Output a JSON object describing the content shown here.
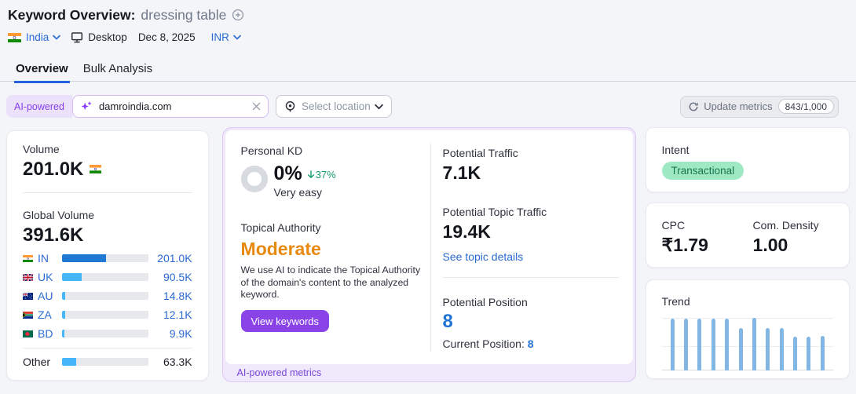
{
  "header": {
    "title": "Keyword Overview:",
    "keyword": "dressing table",
    "country": "India",
    "device": "Desktop",
    "date": "Dec 8, 2025",
    "currency": "INR"
  },
  "tabs": {
    "overview": "Overview",
    "bulk": "Bulk Analysis"
  },
  "toolbar": {
    "ai_badge": "AI-powered",
    "domain_value": "damroindia.com",
    "location_placeholder": "Select location",
    "update_button": "Update metrics",
    "quota": "843/1,000"
  },
  "volume_card": {
    "volume_label": "Volume",
    "volume_value": "201.0K",
    "global_label": "Global Volume",
    "global_value": "391.6K",
    "rows": [
      {
        "code": "IN",
        "value": "201.0K",
        "share_pct": 51.3,
        "bar_color": "#1f78d4"
      },
      {
        "code": "UK",
        "value": "90.5K",
        "share_pct": 23.1,
        "bar_color": "#45b6f7"
      },
      {
        "code": "AU",
        "value": "14.8K",
        "share_pct": 4.0,
        "bar_color": "#45b6f7"
      },
      {
        "code": "ZA",
        "value": "12.1K",
        "share_pct": 3.3,
        "bar_color": "#45b6f7"
      },
      {
        "code": "BD",
        "value": "9.9K",
        "share_pct": 2.8,
        "bar_color": "#45b6f7"
      }
    ],
    "other": {
      "label": "Other",
      "value": "63.3K",
      "share_pct": 16.2,
      "bar_color": "#45b6f7"
    }
  },
  "kd_card": {
    "personal_kd_label": "Personal KD",
    "kd_value": "0%",
    "kd_change": "37%",
    "kd_difficulty": "Very easy",
    "topical_label": "Topical Authority",
    "topical_value": "Moderate",
    "topical_desc": "We use AI to indicate the Topical Authority of the domain's content to the analyzed keyword.",
    "view_keywords": "View keywords",
    "footer": "AI-powered metrics"
  },
  "potential": {
    "traffic_label": "Potential Traffic",
    "traffic_value": "7.1K",
    "topic_traffic_label": "Potential Topic Traffic",
    "topic_traffic_value": "19.4K",
    "topic_link": "See topic details",
    "position_label": "Potential Position",
    "position_value": "8",
    "current_label": "Current Position:",
    "current_value": "8"
  },
  "intent_card": {
    "label": "Intent",
    "value": "Transactional",
    "pill_bg": "#9ee9c3",
    "pill_text": "#17734d"
  },
  "cpc_card": {
    "cpc_label": "CPC",
    "cpc_value": "₹1.79",
    "density_label": "Com. Density",
    "density_value": "1.00"
  },
  "trend_card": {
    "label": "Trend"
  },
  "chart_data": {
    "type": "bar",
    "title": "Trend",
    "categories": [
      "m1",
      "m2",
      "m3",
      "m4",
      "m5",
      "m6",
      "m7",
      "m8",
      "m9",
      "m10",
      "m11",
      "m12"
    ],
    "values": [
      100,
      100,
      100,
      100,
      100,
      81,
      101,
      81,
      81,
      65,
      65,
      66
    ],
    "xlabel": "",
    "ylabel": "",
    "ylim": [
      0,
      101
    ],
    "bar_color": "#82b7e4",
    "note": "relative search trend, axes unlabeled"
  },
  "colors": {
    "accent_blue": "#2a6ad2",
    "purple": "#8a43e6",
    "orange": "#e8890f",
    "green": "#179a6a"
  }
}
